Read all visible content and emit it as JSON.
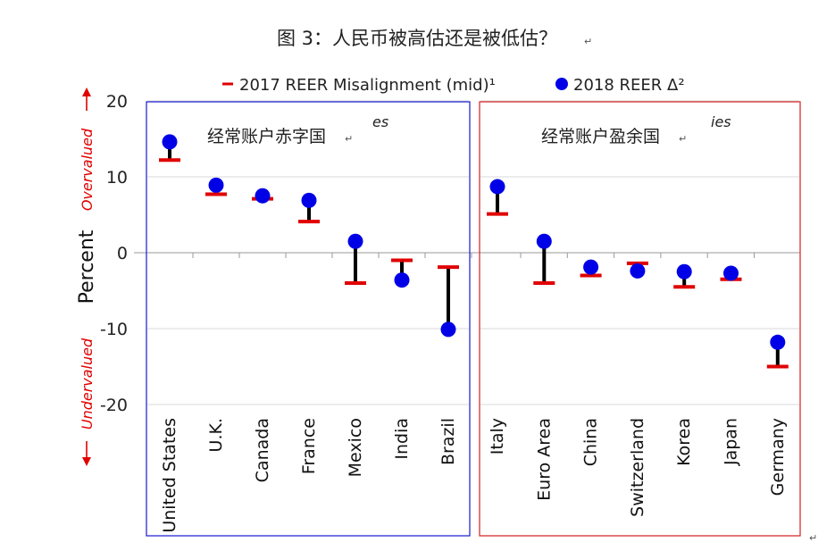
{
  "chart_data": {
    "type": "scatter",
    "title": "图 3：人民币被高估还是被低估？",
    "ylabel": "Percent",
    "ylim": [
      -20,
      20
    ],
    "yticks": [
      20,
      10,
      0,
      -10,
      -20
    ],
    "grid": true,
    "legend_position": "top",
    "over_label": "Overvalued",
    "under_label": "Undervalued",
    "categories": [
      "United States",
      "U.K.",
      "Canada",
      "France",
      "Mexico",
      "India",
      "Brazil",
      "Italy",
      "Euro Area",
      "China",
      "Switzerland",
      "Korea",
      "Japan",
      "Germany"
    ],
    "series": [
      {
        "name": "2017 REER Misalignment (mid)¹",
        "values": [
          12.2,
          7.7,
          7.1,
          4.1,
          -4.0,
          -1.0,
          -1.9,
          5.1,
          -4.0,
          -3.0,
          -1.4,
          -4.5,
          -3.5,
          -15.0
        ]
      },
      {
        "name": "2018 REER Δ²",
        "values": [
          14.6,
          8.9,
          7.5,
          6.9,
          1.5,
          -3.6,
          -10.1,
          8.7,
          1.5,
          -1.9,
          -2.4,
          -2.5,
          -2.7,
          -11.8
        ]
      }
    ],
    "groups": [
      {
        "label": "经常账户赤字国",
        "note": "es",
        "count": 7
      },
      {
        "label": "经常账户盈余国",
        "note": "ies",
        "count": 7
      }
    ]
  },
  "colors": {
    "marker_2017": "#e00000",
    "marker_2018": "#0000e6",
    "connector": "#000000",
    "deficit_box": "#2a2ad6",
    "surplus_box": "#d63030",
    "arrow_text": "#e00000",
    "grid": "#d9d9d9"
  }
}
